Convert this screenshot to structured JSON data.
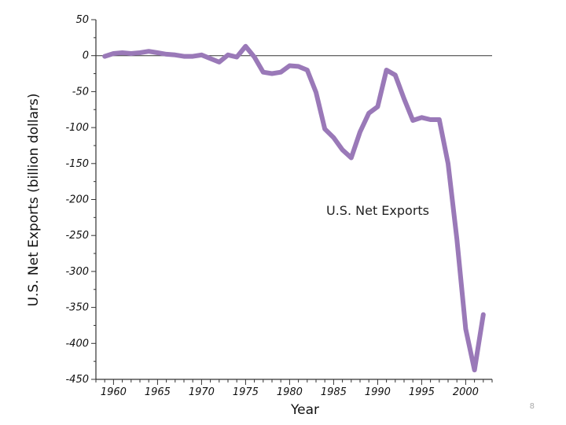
{
  "chart_data": {
    "type": "line",
    "title": "",
    "xlabel": "Year",
    "ylabel": "U.S. Net Exports (billion dollars)",
    "xlim": [
      1958,
      2003
    ],
    "ylim": [
      -450,
      50
    ],
    "x_ticks": [
      1960,
      1965,
      1970,
      1975,
      1980,
      1985,
      1990,
      1995,
      2000
    ],
    "y_ticks": [
      50,
      0,
      -50,
      -100,
      -150,
      -200,
      -250,
      -300,
      -350,
      -400,
      -450
    ],
    "grid": false,
    "zero_line": true,
    "series": [
      {
        "name": "U.S. Net Exports",
        "color": "#9a79b8",
        "x": [
          1959,
          1960,
          1961,
          1962,
          1963,
          1964,
          1965,
          1966,
          1967,
          1968,
          1969,
          1970,
          1971,
          1972,
          1973,
          1974,
          1975,
          1976,
          1977,
          1978,
          1979,
          1980,
          1981,
          1982,
          1983,
          1984,
          1985,
          1986,
          1987,
          1988,
          1989,
          1990,
          1991,
          1992,
          1993,
          1994,
          1995,
          1996,
          1997,
          1998,
          1999,
          2000,
          2001,
          2002
        ],
        "y": [
          -1,
          3,
          4,
          3,
          4,
          6,
          4,
          2,
          1,
          -1,
          -1,
          1,
          -4,
          -9,
          1,
          -2,
          13,
          -2,
          -23,
          -25,
          -23,
          -14,
          -15,
          -20,
          -51,
          -102,
          -114,
          -131,
          -142,
          -106,
          -80,
          -71,
          -20,
          -27,
          -60,
          -90,
          -86,
          -89,
          -89,
          -150,
          -255,
          -380,
          -437,
          -360
        ]
      }
    ],
    "annotations": [
      {
        "text": "U.S. Net Exports"
      }
    ]
  },
  "page_number": "8"
}
